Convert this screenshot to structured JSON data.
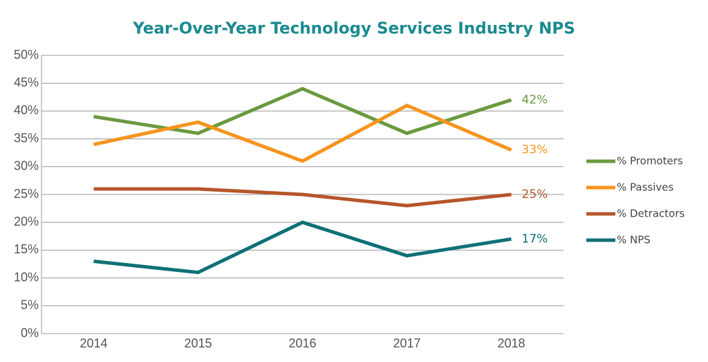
{
  "chart_data": {
    "type": "line",
    "title": "Year-Over-Year Technology Services Industry NPS",
    "categories": [
      "2014",
      "2015",
      "2016",
      "2017",
      "2018"
    ],
    "series": [
      {
        "name": "% Promoters",
        "color": "#6a9a3f",
        "values": [
          39,
          36,
          44,
          36,
          42
        ],
        "value_labels": [
          null,
          null,
          null,
          null,
          "42%"
        ]
      },
      {
        "name": "% Passives",
        "color": "#f7941d",
        "values": [
          34,
          38,
          31,
          41,
          33
        ],
        "value_labels": [
          null,
          null,
          null,
          null,
          "33%"
        ]
      },
      {
        "name": "% Detractors",
        "color": "#b5562a",
        "values": [
          26,
          26,
          25,
          23,
          25
        ],
        "value_labels": [
          null,
          null,
          null,
          null,
          "25%"
        ]
      },
      {
        "name": "% NPS",
        "color": "#0e7177",
        "values": [
          13,
          11,
          20,
          14,
          17
        ],
        "value_labels": [
          null,
          null,
          null,
          null,
          "17%"
        ]
      }
    ],
    "ylim": [
      0,
      50
    ],
    "yticks": [
      {
        "value": 0,
        "label": "0%"
      },
      {
        "value": 5,
        "label": "5%"
      },
      {
        "value": 10,
        "label": "10%"
      },
      {
        "value": 15,
        "label": "15%"
      },
      {
        "value": 20,
        "label": "20%"
      },
      {
        "value": 25,
        "label": "25%"
      },
      {
        "value": 30,
        "label": "30%"
      },
      {
        "value": 35,
        "label": "35%"
      },
      {
        "value": 40,
        "label": "40%"
      },
      {
        "value": 45,
        "label": "45%"
      },
      {
        "value": 50,
        "label": "50%"
      }
    ],
    "grid": true,
    "legend": "right"
  }
}
